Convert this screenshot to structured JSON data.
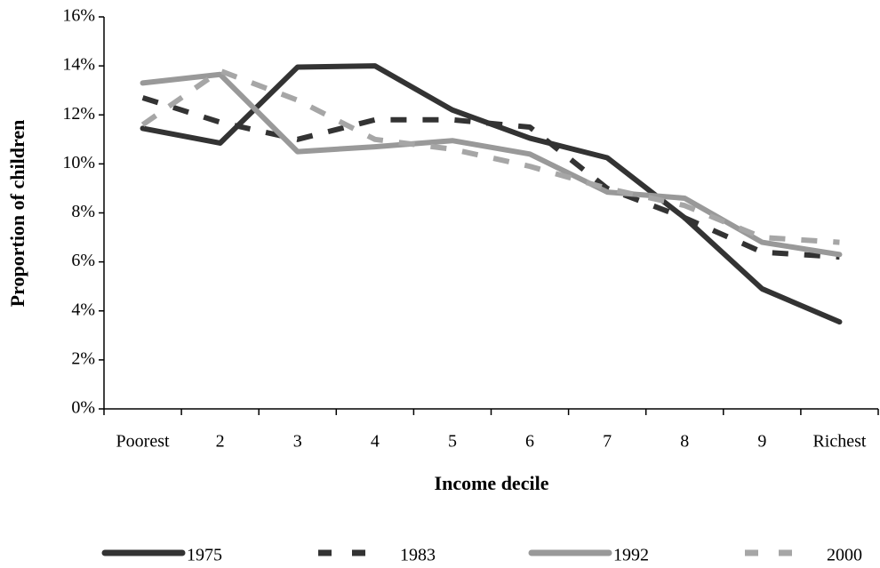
{
  "chart_data": {
    "type": "line",
    "x_label": "Income decile",
    "y_label": "Proportion of children",
    "categories": [
      "Poorest",
      "2",
      "3",
      "4",
      "5",
      "6",
      "7",
      "8",
      "9",
      "Richest"
    ],
    "ylim": [
      0,
      16
    ],
    "yticks": [
      {
        "value": 0,
        "label": "0%"
      },
      {
        "value": 2,
        "label": "2%"
      },
      {
        "value": 4,
        "label": "4%"
      },
      {
        "value": 6,
        "label": "6%"
      },
      {
        "value": 8,
        "label": "8%"
      },
      {
        "value": 10,
        "label": "10%"
      },
      {
        "value": 12,
        "label": "12%"
      },
      {
        "value": 14,
        "label": "14%"
      },
      {
        "value": 16,
        "label": "16%"
      }
    ],
    "legend": "bottom",
    "series": [
      {
        "name": "1975",
        "color": "#333333",
        "dashed": false,
        "values": [
          11.45,
          10.85,
          13.95,
          14.0,
          12.2,
          11.05,
          10.25,
          7.8,
          4.9,
          3.55
        ]
      },
      {
        "name": "1983",
        "color": "#333333",
        "dashed": true,
        "values": [
          12.7,
          11.7,
          11.0,
          11.8,
          11.8,
          11.5,
          9.0,
          7.8,
          6.4,
          6.2
        ]
      },
      {
        "name": "1992",
        "color": "#999999",
        "dashed": false,
        "values": [
          13.3,
          13.65,
          10.5,
          10.7,
          10.95,
          10.4,
          8.85,
          8.6,
          6.8,
          6.3
        ]
      },
      {
        "name": "2000",
        "color": "#a6a6a6",
        "dashed": true,
        "values": [
          11.6,
          13.8,
          12.6,
          11.0,
          10.6,
          9.9,
          9.0,
          8.3,
          7.0,
          6.8
        ]
      }
    ]
  }
}
